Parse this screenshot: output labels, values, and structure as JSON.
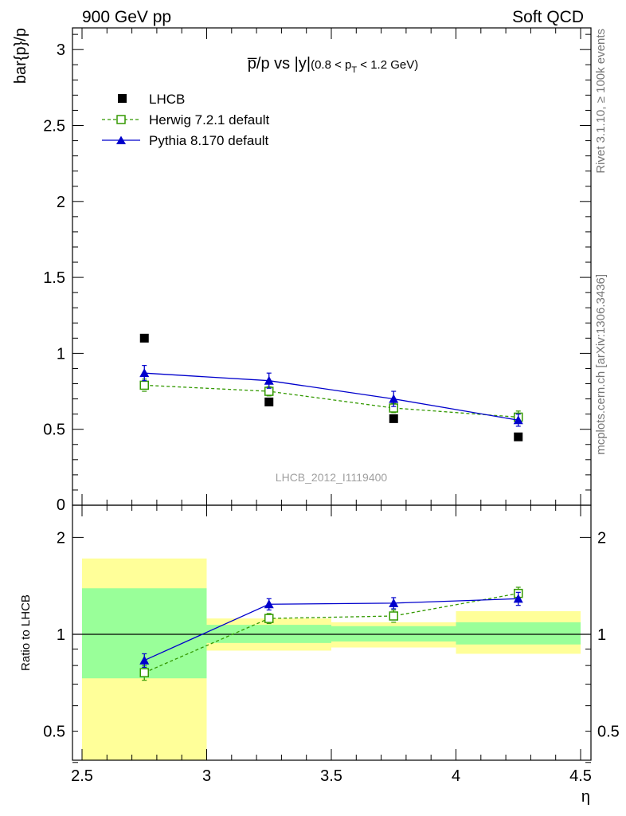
{
  "header": {
    "left_label": "900 GeV pp",
    "right_label": "Soft QCD"
  },
  "side_text": {
    "rivet": "Rivet 3.1.10, ≥ 100k events",
    "mcplots": "mcplots.cern.ch [arXiv:1306.3436]"
  },
  "watermark": "LHCB_2012_I1119400",
  "chart_data": [
    {
      "type": "scatter",
      "title_main": "p̅/p vs |y|",
      "title_cut_open": "(0.8 < p",
      "title_cut_sub": "T",
      "title_cut_close": " < 1.2 GeV)",
      "xlabel": "η",
      "ylabel": "bar{p}/p",
      "xlim": [
        2.5,
        4.5
      ],
      "ylim": [
        0,
        3.15
      ],
      "yticks": [
        {
          "v": 0.5,
          "label": "0.5"
        },
        {
          "v": 1,
          "label": "1"
        },
        {
          "v": 1.5,
          "label": "1.5"
        },
        {
          "v": 2,
          "label": "2"
        },
        {
          "v": 2.5,
          "label": "2.5"
        },
        {
          "v": 3,
          "label": "3"
        }
      ],
      "legend_placement": "top-left",
      "series": [
        {
          "name": "LHCB",
          "color": "#000000",
          "marker": "filled-square",
          "line": "none",
          "x": [
            2.75,
            3.25,
            3.75,
            4.25
          ],
          "y": [
            1.1,
            0.68,
            0.57,
            0.45
          ]
        },
        {
          "name": "Herwig 7.2.1 default",
          "color": "#339900",
          "marker": "open-square",
          "line": "dashed",
          "x": [
            2.75,
            3.25,
            3.75,
            4.25
          ],
          "y": [
            0.79,
            0.75,
            0.64,
            0.58
          ],
          "err": [
            0.04,
            0.03,
            0.03,
            0.04
          ]
        },
        {
          "name": "Pythia 8.170 default",
          "color": "#0000cc",
          "marker": "filled-triangle",
          "line": "solid",
          "x": [
            2.75,
            3.25,
            3.75,
            4.25
          ],
          "y": [
            0.87,
            0.82,
            0.7,
            0.56
          ],
          "err": [
            0.05,
            0.05,
            0.05,
            0.04
          ]
        }
      ]
    },
    {
      "type": "scatter",
      "xlabel": "η",
      "ylabel": "Ratio to LHCB",
      "xlim": [
        2.5,
        4.5
      ],
      "ylim": [
        0.35,
        2.3
      ],
      "log_y": true,
      "xticks": [
        {
          "v": 2.5,
          "label": "2.5"
        },
        {
          "v": 3,
          "label": "3"
        },
        {
          "v": 3.5,
          "label": "3.5"
        },
        {
          "v": 4,
          "label": "4"
        },
        {
          "v": 4.5,
          "label": "4.5"
        }
      ],
      "yticks": [
        {
          "v": 0.5,
          "label": "0.5"
        },
        {
          "v": 1,
          "label": "1"
        },
        {
          "v": 2,
          "label": "2"
        }
      ],
      "reference_line": 1,
      "bands": [
        {
          "x0": 2.5,
          "x1": 3.0,
          "inner": [
            0.73,
            1.39
          ],
          "outer": [
            0.3,
            1.72
          ]
        },
        {
          "x0": 3.0,
          "x1": 3.5,
          "inner": [
            0.94,
            1.07
          ],
          "outer": [
            0.89,
            1.12
          ]
        },
        {
          "x0": 3.5,
          "x1": 4.0,
          "inner": [
            0.95,
            1.06
          ],
          "outer": [
            0.91,
            1.09
          ]
        },
        {
          "x0": 4.0,
          "x1": 4.5,
          "inner": [
            0.93,
            1.09
          ],
          "outer": [
            0.87,
            1.18
          ]
        }
      ],
      "band_colors": {
        "inner": "#99ff99",
        "outer": "#ffff99"
      },
      "series": [
        {
          "name": "Herwig 7.2.1 default",
          "color": "#339900",
          "marker": "open-square",
          "line": "dashed",
          "x": [
            2.75,
            3.25,
            3.75,
            4.25
          ],
          "y": [
            0.76,
            1.12,
            1.14,
            1.34
          ],
          "err": [
            0.04,
            0.04,
            0.05,
            0.06
          ]
        },
        {
          "name": "Pythia 8.170 default",
          "color": "#0000cc",
          "marker": "filled-triangle",
          "line": "solid",
          "x": [
            2.75,
            3.25,
            3.75,
            4.25
          ],
          "y": [
            0.83,
            1.24,
            1.25,
            1.29
          ],
          "err": [
            0.04,
            0.05,
            0.05,
            0.06
          ]
        }
      ]
    }
  ]
}
